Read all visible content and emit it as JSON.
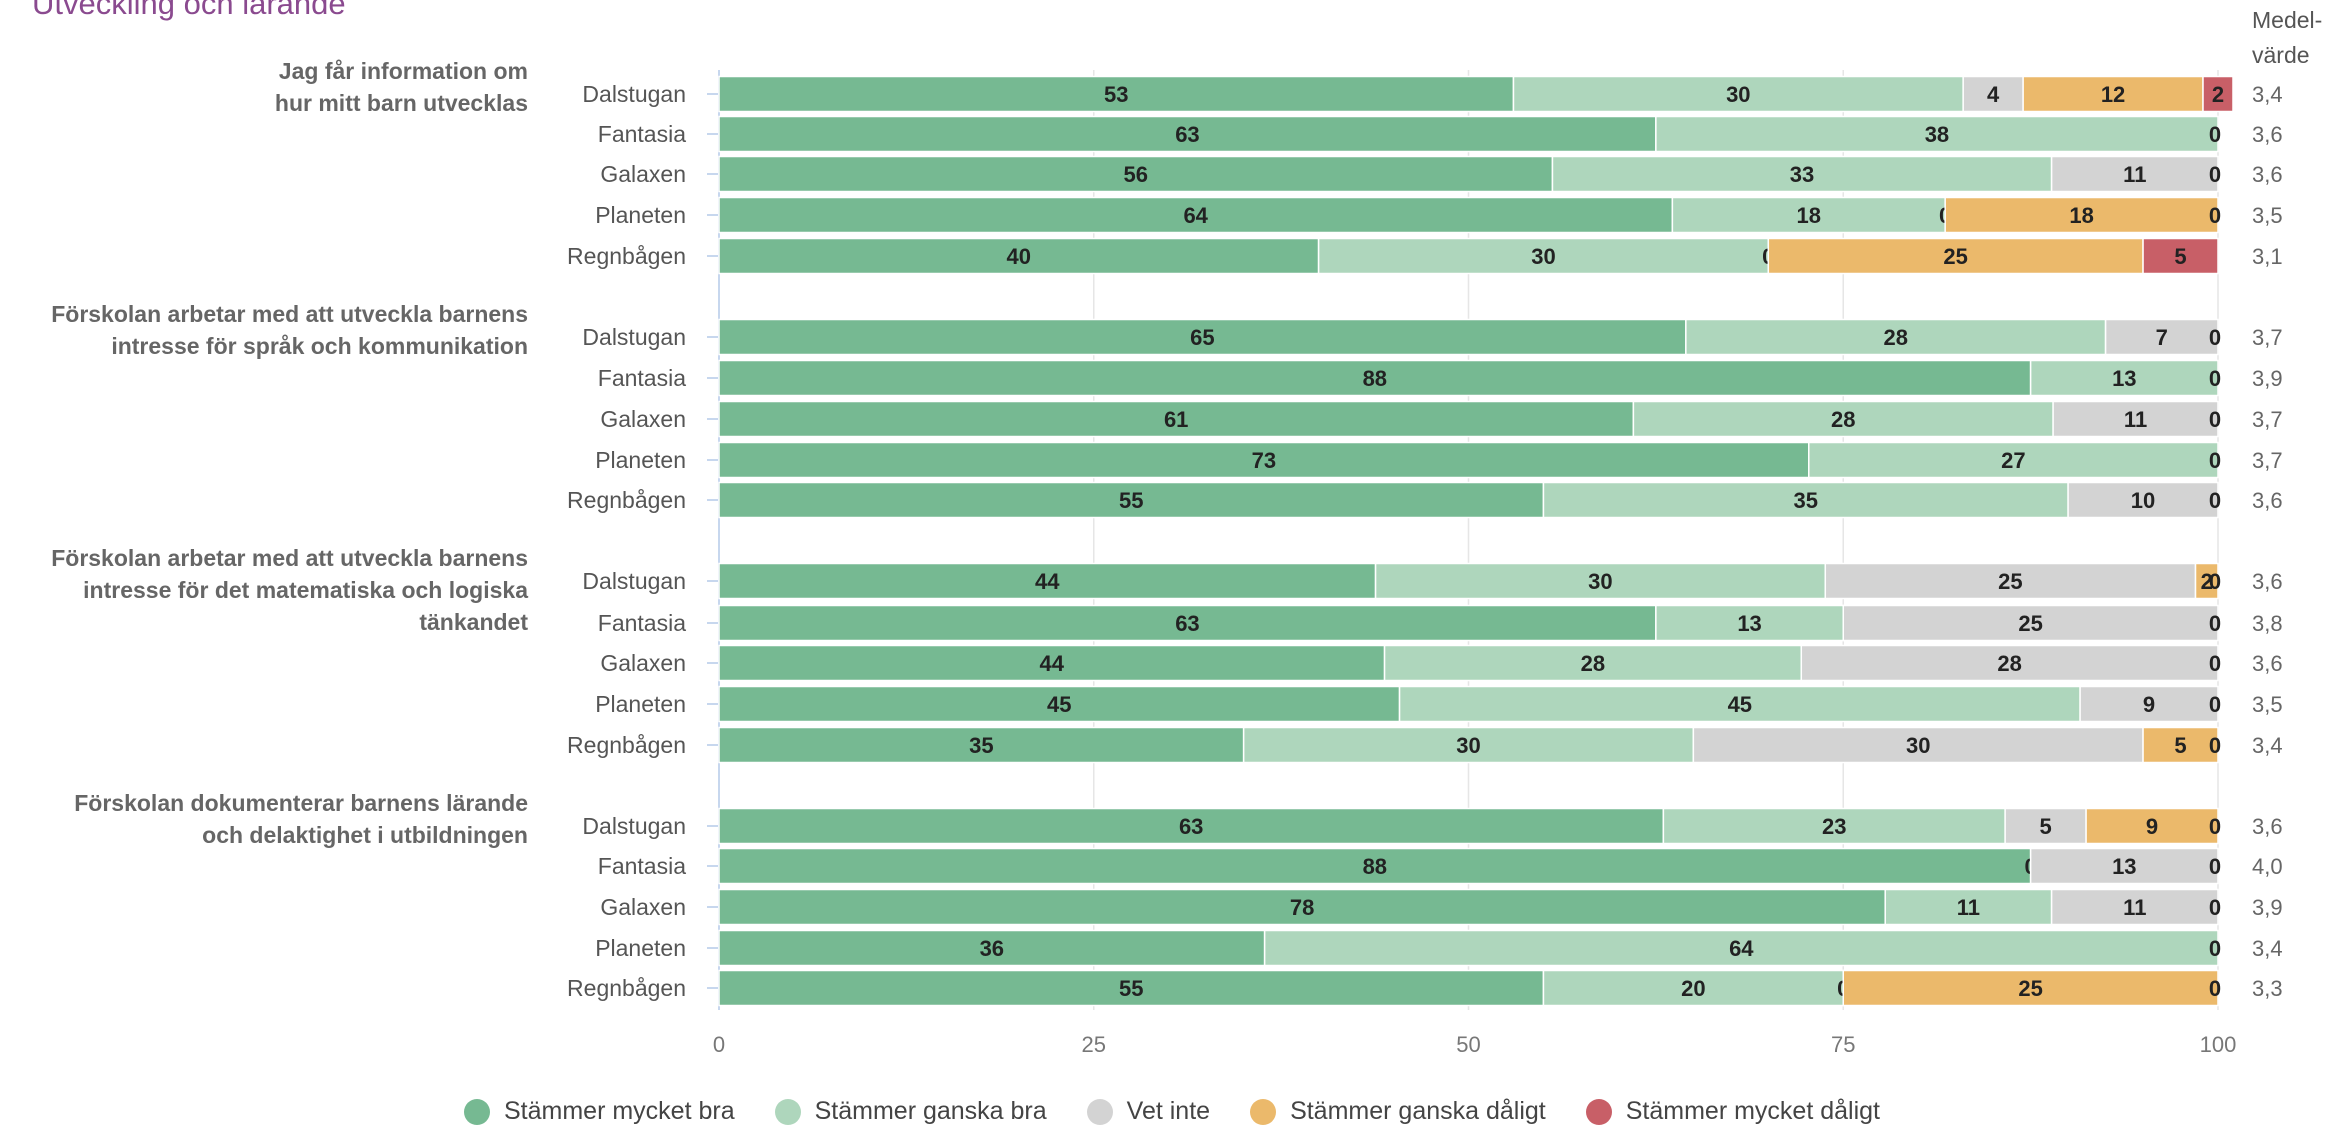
{
  "chart_data": {
    "type": "bar",
    "orientation": "horizontal",
    "stacked": true,
    "title": "Utveckling och lärande",
    "value_column_header": "Medel-värde",
    "value_column_header_lines": [
      "Medel-",
      "värde"
    ],
    "xlim": [
      0,
      100
    ],
    "xticks": [
      "0",
      "25",
      "50",
      "75",
      "100"
    ],
    "grid": true,
    "legend_position": "bottom",
    "series": [
      {
        "name": "Stämmer mycket bra",
        "color": "#76b992"
      },
      {
        "name": "Stämmer ganska bra",
        "color": "#aed6bc"
      },
      {
        "name": "Vet inte",
        "color": "#d3d3d3"
      },
      {
        "name": "Stämmer ganska dåligt",
        "color": "#ebb96b"
      },
      {
        "name": "Stämmer mycket dåligt",
        "color": "#c85f67"
      }
    ],
    "groups": [
      {
        "question": "Jag får information om hur mitt barn utvecklas",
        "question_lines": [
          "Jag får information om",
          "hur mitt barn utvecklas"
        ],
        "rows": [
          {
            "label": "Dalstugan",
            "values": [
              53,
              30,
              4,
              12,
              2
            ],
            "labels": [
              "53",
              "30",
              "4",
              "12",
              "2"
            ],
            "mean": "3,4"
          },
          {
            "label": "Fantasia",
            "values": [
              62.5,
              37.5,
              0,
              0,
              0
            ],
            "labels": [
              "63",
              "38",
              "",
              "",
              "0"
            ],
            "mean": "3,6"
          },
          {
            "label": "Galaxen",
            "values": [
              55.6,
              33.3,
              11.1,
              0,
              0
            ],
            "labels": [
              "56",
              "33",
              "11",
              "",
              "0"
            ],
            "mean": "3,6"
          },
          {
            "label": "Planeten",
            "values": [
              63.6,
              18.2,
              0,
              18.2,
              0
            ],
            "labels": [
              "64",
              "18",
              "0",
              "18",
              "0"
            ],
            "mean": "3,5"
          },
          {
            "label": "Regnbågen",
            "values": [
              40,
              30,
              0,
              25,
              5
            ],
            "labels": [
              "40",
              "30",
              "0",
              "25",
              "5"
            ],
            "mean": "3,1"
          }
        ]
      },
      {
        "question": "Förskolan arbetar med att utveckla barnens intresse för språk och kommunikation",
        "question_lines": [
          "Förskolan arbetar med att utveckla barnens",
          "intresse för språk och kommunikation"
        ],
        "rows": [
          {
            "label": "Dalstugan",
            "values": [
              64.5,
              28,
              7.5,
              0,
              0
            ],
            "labels": [
              "65",
              "28",
              "7",
              "",
              "0"
            ],
            "mean": "3,7"
          },
          {
            "label": "Fantasia",
            "values": [
              87.5,
              12.5,
              0,
              0,
              0
            ],
            "labels": [
              "88",
              "13",
              "",
              "",
              "0"
            ],
            "mean": "3,9"
          },
          {
            "label": "Galaxen",
            "values": [
              61,
              28,
              11,
              0,
              0
            ],
            "labels": [
              "61",
              "28",
              "11",
              "",
              "0"
            ],
            "mean": "3,7"
          },
          {
            "label": "Planeten",
            "values": [
              72.7,
              27.3,
              0,
              0,
              0
            ],
            "labels": [
              "73",
              "27",
              "",
              "",
              "0"
            ],
            "mean": "3,7"
          },
          {
            "label": "Regnbågen",
            "values": [
              55,
              35,
              10,
              0,
              0
            ],
            "labels": [
              "55",
              "35",
              "10",
              "",
              "0"
            ],
            "mean": "3,6"
          }
        ]
      },
      {
        "question": "Förskolan arbetar med att utveckla barnens intresse för det matematiska och logiska tänkandet",
        "question_lines": [
          "Förskolan arbetar med att utveckla barnens",
          "intresse för det matematiska och logiska",
          "tänkandet"
        ],
        "rows": [
          {
            "label": "Dalstugan",
            "values": [
              43.8,
              30,
              24.7,
              1.5,
              0
            ],
            "labels": [
              "44",
              "30",
              "25",
              "2",
              "0"
            ],
            "mean": "3,6"
          },
          {
            "label": "Fantasia",
            "values": [
              62.5,
              12.5,
              25,
              0,
              0
            ],
            "labels": [
              "63",
              "13",
              "25",
              "",
              "0"
            ],
            "mean": "3,8"
          },
          {
            "label": "Galaxen",
            "values": [
              44.4,
              27.8,
              27.8,
              0,
              0
            ],
            "labels": [
              "44",
              "28",
              "28",
              "",
              "0"
            ],
            "mean": "3,6"
          },
          {
            "label": "Planeten",
            "values": [
              45.4,
              45.4,
              9.2,
              0,
              0
            ],
            "labels": [
              "45",
              "45",
              "9",
              "",
              "0"
            ],
            "mean": "3,5"
          },
          {
            "label": "Regnbågen",
            "values": [
              35,
              30,
              30,
              5,
              0
            ],
            "labels": [
              "35",
              "30",
              "30",
              "5",
              "0"
            ],
            "mean": "3,4"
          }
        ]
      },
      {
        "question": "Förskolan dokumenterar barnens lärande och delaktighet i utbildningen",
        "question_lines": [
          "Förskolan dokumenterar barnens lärande",
          "och delaktighet i utbildningen"
        ],
        "rows": [
          {
            "label": "Dalstugan",
            "values": [
              63,
              22.8,
              5.4,
              8.8,
              0
            ],
            "labels": [
              "63",
              "23",
              "5",
              "9",
              "0"
            ],
            "mean": "3,6"
          },
          {
            "label": "Fantasia",
            "values": [
              87.5,
              0,
              12.5,
              0,
              0
            ],
            "labels": [
              "88",
              "0",
              "13",
              "",
              "0"
            ],
            "mean": "4,0"
          },
          {
            "label": "Galaxen",
            "values": [
              77.8,
              11.1,
              11.1,
              0,
              0
            ],
            "labels": [
              "78",
              "11",
              "11",
              "",
              "0"
            ],
            "mean": "3,9"
          },
          {
            "label": "Planeten",
            "values": [
              36.4,
              63.6,
              0,
              0,
              0
            ],
            "labels": [
              "36",
              "64",
              "",
              "",
              "0"
            ],
            "mean": "3,4"
          },
          {
            "label": "Regnbågen",
            "values": [
              55,
              20,
              0,
              25,
              0
            ],
            "labels": [
              "55",
              "20",
              "0",
              "25",
              "0"
            ],
            "mean": "3,3"
          }
        ]
      }
    ]
  }
}
